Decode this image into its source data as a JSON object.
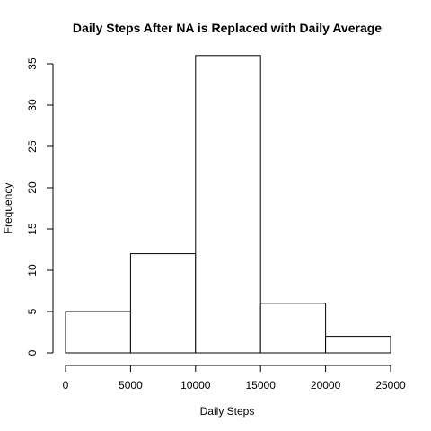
{
  "chart_data": {
    "type": "bar",
    "title": "Daily Steps After NA is Replaced with Daily Average",
    "xlabel": "Daily Steps",
    "ylabel": "Frequency",
    "bins": [
      {
        "from": 0,
        "to": 5000,
        "count": 5
      },
      {
        "from": 5000,
        "to": 10000,
        "count": 12
      },
      {
        "from": 10000,
        "to": 15000,
        "count": 36
      },
      {
        "from": 15000,
        "to": 20000,
        "count": 6
      },
      {
        "from": 20000,
        "to": 25000,
        "count": 2
      }
    ],
    "xlim": [
      0,
      25000
    ],
    "ylim": [
      0,
      35
    ],
    "xticks": [
      "0",
      "5000",
      "10000",
      "15000",
      "20000",
      "25000"
    ],
    "yticks": [
      "0",
      "5",
      "10",
      "15",
      "20",
      "25",
      "30",
      "35"
    ],
    "grid": false,
    "legend": "none"
  }
}
